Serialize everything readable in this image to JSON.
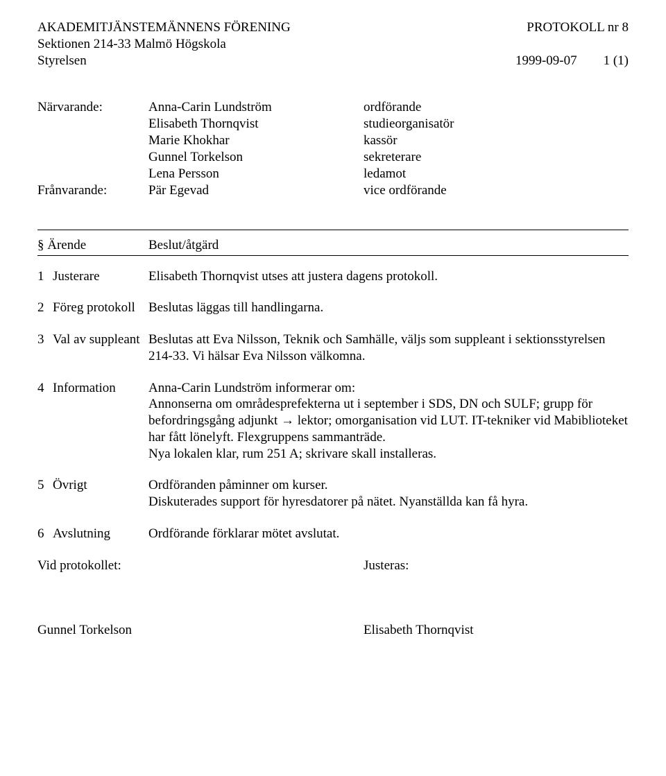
{
  "header": {
    "org_line1": "AKADEMITJÄNSTEMÄNNENS FÖRENING",
    "org_line2": "Sektionen 214-33 Malmö Högskola",
    "org_line3_left": "Styrelsen",
    "protokoll_label": "PROTOKOLL  nr 8",
    "date": "1999-09-07",
    "page_of": "1 (1)"
  },
  "attendees": {
    "present_label": "Närvarande:",
    "absent_label": "Frånvarande:",
    "present": [
      {
        "name": "Anna-Carin Lundström",
        "role": "ordförande"
      },
      {
        "name": "Elisabeth Thornqvist",
        "role": "studieorganisatör"
      },
      {
        "name": "Marie Khokhar",
        "role": "kassör"
      },
      {
        "name": "Gunnel Torkelson",
        "role": "sekreterare"
      },
      {
        "name": "Lena Persson",
        "role": "ledamot"
      }
    ],
    "absent": [
      {
        "name": "Pär Egevad",
        "role": "vice ordförande"
      }
    ]
  },
  "section_header": {
    "col1": "§ Ärende",
    "col2": "Beslut/åtgärd"
  },
  "items": [
    {
      "num": "1",
      "label": "Justerare",
      "text": "Elisabeth Thornqvist utses att justera dagens protokoll."
    },
    {
      "num": "2",
      "label": "Föreg protokoll",
      "text": "Beslutas läggas till handlingarna."
    },
    {
      "num": "3",
      "label": "Val av suppleant",
      "text": "Beslutas att Eva Nilsson, Teknik och Samhälle, väljs som suppleant i sektionsstyrelsen 214-33. Vi hälsar Eva Nilsson välkomna."
    },
    {
      "num": "4",
      "label": "Information",
      "text_lines": [
        "Anna-Carin Lundström informerar om:",
        "Annonserna om områdesprefekterna ut i september i SDS, DN och SULF; grupp för befordringsgång adjunkt → lektor; omorganisation vid LUT. IT-tekniker vid Mabiblioteket har fått lönelyft. Flexgruppens sammanträde.",
        "Nya lokalen klar, rum 251 A; skrivare skall installeras."
      ]
    },
    {
      "num": "5",
      "label": "Övrigt",
      "text_lines": [
        "Ordföranden påminner om kurser.",
        "Diskuterades support för hyresdatorer på nätet. Nyanställda kan få hyra."
      ]
    },
    {
      "num": "6",
      "label": "Avslutning",
      "text": "Ordförande förklarar mötet avslutat."
    }
  ],
  "footer": {
    "left_label": "Vid protokollet:",
    "right_label": "Justeras:",
    "signer_left": "Gunnel Torkelson",
    "signer_right": "Elisabeth Thornqvist"
  }
}
